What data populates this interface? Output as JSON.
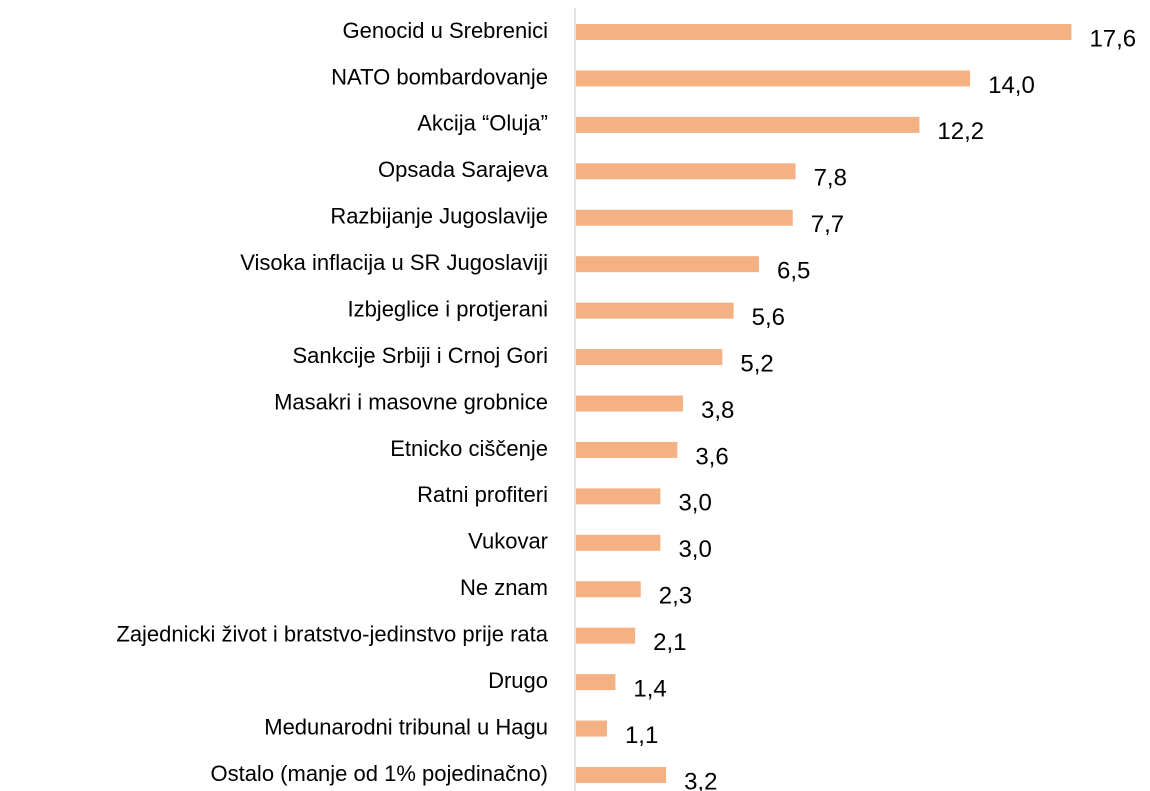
{
  "chart_data": {
    "type": "bar",
    "orientation": "horizontal",
    "categories": [
      "Genocid u Srebrenici",
      "NATO bombardovanje",
      "Akcija “Oluja”",
      "Opsada Sarajeva",
      "Razbijanje Jugoslavije",
      "Visoka inflacija u SR Jugoslaviji",
      "Izbjeglice i protjerani",
      "Sankcije Srbiji i Crnoj Gori",
      "Masakri i masovne grobnice",
      "Etnicko ciščenje",
      "Ratni profiteri",
      "Vukovar",
      "Ne znam",
      "Zajednicki život i bratstvo-jedinstvo prije rata",
      "Drugo",
      "Medunarodni tribunal u Hagu",
      "Ostalo (manje od 1% pojedinačno)"
    ],
    "values": [
      17.6,
      14.0,
      12.2,
      7.8,
      7.7,
      6.5,
      5.6,
      5.2,
      3.8,
      3.6,
      3.0,
      3.0,
      2.3,
      2.1,
      1.4,
      1.1,
      3.2
    ],
    "value_labels": [
      "17,6",
      "14,0",
      "12,2",
      "7,8",
      "7,7",
      "6,5",
      "5,6",
      "5,2",
      "3,8",
      "3,6",
      "3,0",
      "3,0",
      "2,3",
      "2,1",
      "1,4",
      "1,1",
      "3,2"
    ],
    "color": "#f4b183"
  }
}
